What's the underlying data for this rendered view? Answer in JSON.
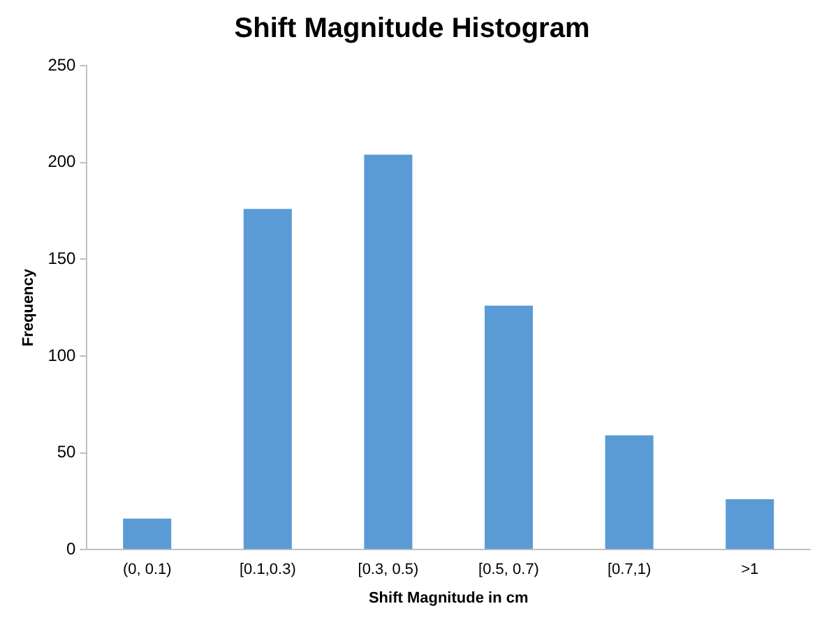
{
  "chart_data": {
    "type": "bar",
    "title": "Shift Magnitude Histogram",
    "xlabel": "Shift Magnitude in cm",
    "ylabel": "Frequency",
    "categories": [
      "(0, 0.1)",
      "[0.1,0.3)",
      "[0.3, 0.5)",
      "[0.5, 0.7)",
      "[0.7,1)",
      ">1"
    ],
    "values": [
      16,
      176,
      204,
      126,
      59,
      26
    ],
    "color": "#5b9bd5",
    "ylim": [
      0,
      250
    ],
    "yticks": [
      0,
      50,
      100,
      150,
      200,
      250
    ],
    "grid": false,
    "legend": false
  }
}
